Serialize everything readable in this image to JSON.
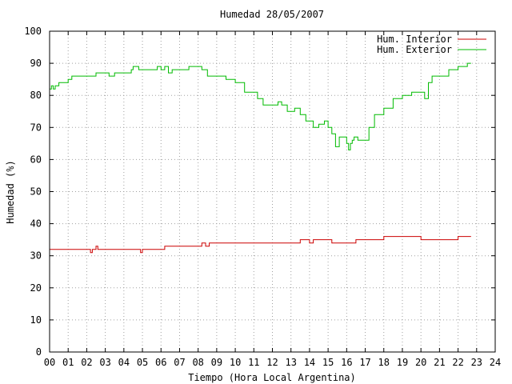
{
  "chart_data": {
    "type": "line",
    "title": "Humedad 28/05/2007",
    "xlabel": "Tiempo (Hora Local Argentina)",
    "ylabel": "Humedad (%)",
    "xlim": [
      0,
      24
    ],
    "ylim": [
      0,
      100
    ],
    "xticks": [
      "00",
      "01",
      "02",
      "03",
      "04",
      "05",
      "06",
      "07",
      "08",
      "09",
      "10",
      "11",
      "12",
      "13",
      "14",
      "15",
      "16",
      "17",
      "18",
      "19",
      "20",
      "21",
      "22",
      "23",
      "24"
    ],
    "yticks": [
      "0",
      "10",
      "20",
      "30",
      "40",
      "50",
      "60",
      "70",
      "80",
      "90",
      "100"
    ],
    "grid": true,
    "legend_position": "top-right",
    "series": [
      {
        "name": "Hum. Interior",
        "color": "#cc0000",
        "x": [
          0,
          0.5,
          1,
          1.5,
          2,
          2.2,
          2.3,
          2.4,
          2.5,
          2.6,
          3,
          3.5,
          4,
          4.2,
          4.5,
          4.7,
          4.9,
          5.0,
          5.5,
          6,
          6.2,
          6.5,
          7,
          7.5,
          8,
          8.2,
          8.4,
          8.6,
          9,
          9.5,
          10,
          10.5,
          11,
          11.5,
          12,
          12.5,
          13,
          13.5,
          14,
          14.2,
          14.5,
          15,
          15.2,
          15.5,
          16,
          16.5,
          17,
          17.5,
          18,
          18.5,
          19,
          19.5,
          20,
          20.5,
          21,
          21.5,
          22,
          22.5,
          22.7
        ],
        "y": [
          32,
          32,
          32,
          32,
          32,
          31,
          32,
          32,
          33,
          32,
          32,
          32,
          32,
          32,
          32,
          32,
          31,
          32,
          32,
          32,
          33,
          33,
          33,
          33,
          33,
          34,
          33,
          34,
          34,
          34,
          34,
          34,
          34,
          34,
          34,
          34,
          34,
          35,
          34,
          35,
          35,
          35,
          34,
          34,
          34,
          35,
          35,
          35,
          36,
          36,
          36,
          36,
          35,
          35,
          35,
          35,
          36,
          36,
          36
        ]
      },
      {
        "name": "Hum. Exterior",
        "color": "#00bb00",
        "x": [
          0,
          0.1,
          0.2,
          0.3,
          0.5,
          1,
          1.2,
          1.5,
          2,
          2.2,
          2.5,
          3,
          3.2,
          3.5,
          4,
          4.4,
          4.5,
          4.8,
          5,
          5.5,
          5.8,
          6,
          6.2,
          6.4,
          6.6,
          7,
          7.5,
          8,
          8.2,
          8.5,
          9,
          9.5,
          10,
          10.5,
          11,
          11.2,
          11.5,
          12,
          12.3,
          12.5,
          12.8,
          13,
          13.2,
          13.5,
          13.8,
          14,
          14.2,
          14.5,
          14.8,
          15,
          15.2,
          15.4,
          15.6,
          15.8,
          16,
          16.1,
          16.2,
          16.3,
          16.4,
          16.5,
          16.6,
          16.8,
          17,
          17.2,
          17.5,
          18,
          18.5,
          19,
          19.5,
          20,
          20.2,
          20.4,
          20.6,
          21,
          21.3,
          21.5,
          22,
          22.5,
          22.7
        ],
        "y": [
          82,
          83,
          82,
          83,
          84,
          85,
          86,
          86,
          86,
          86,
          87,
          87,
          86,
          87,
          87,
          88,
          89,
          88,
          88,
          88,
          89,
          88,
          89,
          87,
          88,
          88,
          89,
          89,
          88,
          86,
          86,
          85,
          84,
          81,
          81,
          79,
          77,
          77,
          78,
          77,
          75,
          75,
          76,
          74,
          72,
          72,
          70,
          71,
          72,
          70,
          68,
          64,
          67,
          67,
          65,
          63,
          65,
          66,
          67,
          67,
          66,
          66,
          66,
          70,
          74,
          76,
          79,
          80,
          81,
          81,
          79,
          84,
          86,
          86,
          86,
          88,
          89,
          90,
          90
        ]
      }
    ]
  }
}
